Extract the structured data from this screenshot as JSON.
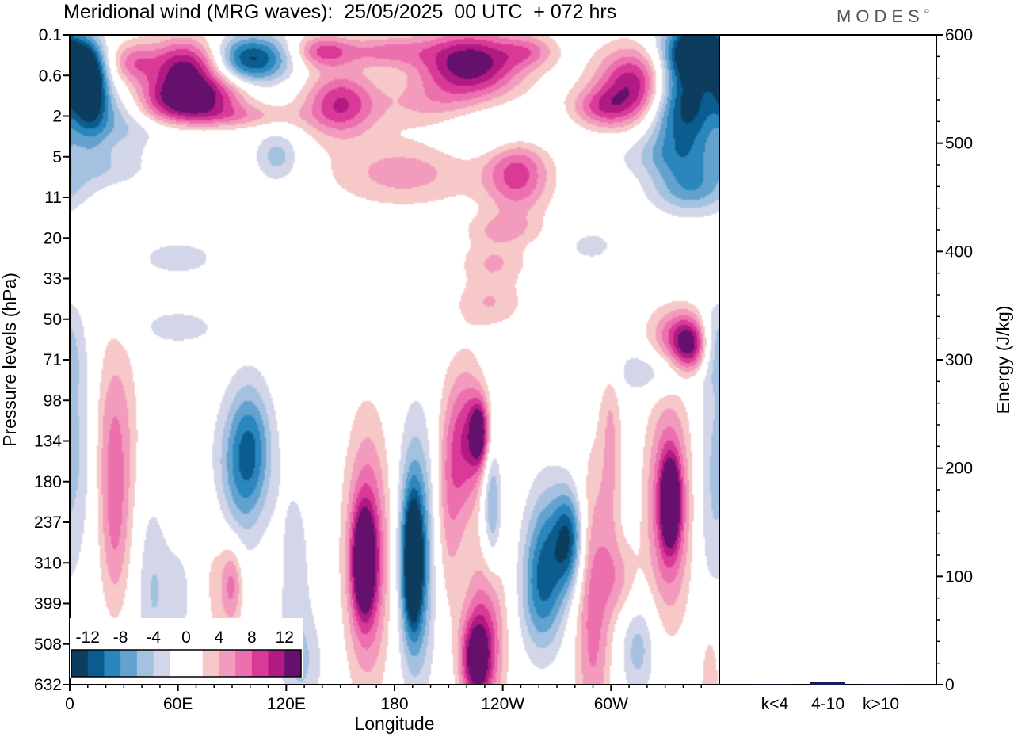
{
  "chart_data": [
    {
      "type": "heatmap",
      "title": "Meridional wind (MRG waves):  25/05/2025  00 UTC  + 072 hrs",
      "xlabel": "Longitude",
      "ylabel": "Pressure levels (hPa)",
      "x_ticks": [
        "0",
        "60E",
        "120E",
        "180",
        "120W",
        "60W"
      ],
      "x_tick_values": [
        0,
        60,
        120,
        180,
        240,
        300
      ],
      "xlim": [
        0,
        360
      ],
      "y_ticks": [
        "0.1",
        "0.6",
        "2",
        "5",
        "11",
        "20",
        "33",
        "50",
        "71",
        "98",
        "134",
        "180",
        "237",
        "310",
        "399",
        "508",
        "632"
      ],
      "colorbar": {
        "labels": [
          "-12",
          "-8",
          "-4",
          "0",
          "4",
          "8",
          "12"
        ],
        "colors": [
          "#0c3c5e",
          "#0b5d8f",
          "#2a86bd",
          "#63a2cf",
          "#a4c2e0",
          "#d2d6e8",
          "#ffffff",
          "#ffffff",
          "#f7c8c8",
          "#f29bbd",
          "#ec6fae",
          "#d93a98",
          "#b01a82",
          "#66106e"
        ]
      },
      "blobs": [
        {
          "lon": 8,
          "lev": 1.0,
          "w": 10,
          "h": 0.8,
          "v": -14
        },
        {
          "lon": 35,
          "lev": 0.7,
          "w": 12,
          "h": 0.5,
          "v": 6
        },
        {
          "lon": 65,
          "lev": 0.8,
          "w": 22,
          "h": 0.7,
          "v": 13
        },
        {
          "lon": 58,
          "lev": 1.6,
          "w": 25,
          "h": 0.5,
          "v": 11
        },
        {
          "lon": 100,
          "lev": 0.6,
          "w": 22,
          "h": 0.6,
          "v": -13
        },
        {
          "lon": 140,
          "lev": 0.4,
          "w": 16,
          "h": 0.4,
          "v": 8
        },
        {
          "lon": 85,
          "lev": 2.0,
          "w": 40,
          "h": 0.3,
          "v": 5
        },
        {
          "lon": 222,
          "lev": 0.7,
          "w": 28,
          "h": 0.8,
          "v": 14
        },
        {
          "lon": 175,
          "lev": 0.4,
          "w": 25,
          "h": 0.4,
          "v": 6
        },
        {
          "lon": 255,
          "lev": 0.4,
          "w": 15,
          "h": 0.4,
          "v": 5
        },
        {
          "lon": 315,
          "lev": 1.2,
          "w": 22,
          "h": 0.9,
          "v": 13
        },
        {
          "lon": 340,
          "lev": 1.5,
          "w": 20,
          "h": 1.6,
          "v": -15
        },
        {
          "lon": 350,
          "lev": 0.4,
          "w": 15,
          "h": 0.6,
          "v": -14
        },
        {
          "lon": 25,
          "lev": 2.0,
          "w": 25,
          "h": 0.8,
          "v": -6
        },
        {
          "lon": 12,
          "lev": 1.5,
          "w": 10,
          "h": 1.2,
          "v": -7
        },
        {
          "lon": 82,
          "lev": 1.5,
          "w": 20,
          "h": 0.5,
          "v": 5
        },
        {
          "lon": 150,
          "lev": 1.7,
          "w": 20,
          "h": 0.8,
          "v": 10
        },
        {
          "lon": 200,
          "lev": 1.7,
          "w": 30,
          "h": 0.6,
          "v": 4
        },
        {
          "lon": 240,
          "lev": 2.4,
          "w": 30,
          "h": 0.6,
          "v": -4
        },
        {
          "lon": 295,
          "lev": 1.8,
          "w": 18,
          "h": 0.5,
          "v": 7
        },
        {
          "lon": 248,
          "lev": 3.4,
          "w": 18,
          "h": 1.0,
          "v": 9
        },
        {
          "lon": 185,
          "lev": 3.4,
          "w": 40,
          "h": 0.8,
          "v": 5
        },
        {
          "lon": 115,
          "lev": 3.0,
          "w": 12,
          "h": 0.6,
          "v": -5
        },
        {
          "lon": 20,
          "lev": 3.3,
          "w": 25,
          "h": 0.5,
          "v": -3
        },
        {
          "lon": 345,
          "lev": 3.8,
          "w": 22,
          "h": 0.6,
          "v": -6
        },
        {
          "lon": 330,
          "lev": 3.0,
          "w": 30,
          "h": 0.5,
          "v": -3
        },
        {
          "lon": 60,
          "lev": 5.5,
          "w": 25,
          "h": 0.5,
          "v": -3
        },
        {
          "lon": 235,
          "lev": 5.6,
          "w": 18,
          "h": 0.5,
          "v": 4
        },
        {
          "lon": 233,
          "lev": 6.6,
          "w": 18,
          "h": 0.6,
          "v": 4
        },
        {
          "lon": 290,
          "lev": 5.2,
          "w": 15,
          "h": 0.4,
          "v": -3
        },
        {
          "lon": 60,
          "lev": 7.2,
          "w": 25,
          "h": 0.5,
          "v": -3
        },
        {
          "lon": 335,
          "lev": 7.4,
          "w": 15,
          "h": 0.7,
          "v": 6
        },
        {
          "lon": 344,
          "lev": 7.7,
          "w": 10,
          "h": 0.7,
          "v": 11
        },
        {
          "lon": 325,
          "lev": 8.3,
          "w": 30,
          "h": 0.6,
          "v": -4
        },
        {
          "lon": 357,
          "lev": 7.5,
          "w": 8,
          "h": 0.8,
          "v": -4
        },
        {
          "lon": 25,
          "lev": 10.0,
          "w": 12,
          "h": 2.6,
          "v": 6
        },
        {
          "lon": 25,
          "lev": 12.5,
          "w": 8,
          "h": 2.0,
          "v": 4
        },
        {
          "lon": 5,
          "lev": 10.0,
          "w": 10,
          "h": 3.0,
          "v": -4
        },
        {
          "lon": 100,
          "lev": 10.2,
          "w": 12,
          "h": 1.6,
          "v": -9
        },
        {
          "lon": 88,
          "lev": 11.2,
          "w": 16,
          "h": 2.0,
          "v": -5
        },
        {
          "lon": 80,
          "lev": 12.8,
          "w": 12,
          "h": 2.5,
          "v": 4
        },
        {
          "lon": 90,
          "lev": 13.5,
          "w": 6,
          "h": 1.0,
          "v": 6
        },
        {
          "lon": 60,
          "lev": 13.8,
          "w": 15,
          "h": 1.5,
          "v": -3
        },
        {
          "lon": 125,
          "lev": 13.5,
          "w": 10,
          "h": 3.0,
          "v": -3
        },
        {
          "lon": 165,
          "lev": 12.8,
          "w": 12,
          "h": 3.0,
          "v": 10
        },
        {
          "lon": 163,
          "lev": 13.0,
          "w": 6,
          "h": 1.2,
          "v": 13
        },
        {
          "lon": 192,
          "lev": 12.8,
          "w": 10,
          "h": 3.0,
          "v": -10
        },
        {
          "lon": 190,
          "lev": 13.0,
          "w": 5,
          "h": 1.5,
          "v": -13
        },
        {
          "lon": 220,
          "lev": 10.0,
          "w": 10,
          "h": 1.8,
          "v": 9
        },
        {
          "lon": 227,
          "lev": 9.8,
          "w": 5,
          "h": 0.8,
          "v": 12
        },
        {
          "lon": 210,
          "lev": 11.5,
          "w": 8,
          "h": 2.5,
          "v": 5
        },
        {
          "lon": 234,
          "lev": 11.6,
          "w": 5,
          "h": 1.4,
          "v": -7
        },
        {
          "lon": 230,
          "lev": 14.8,
          "w": 12,
          "h": 2.0,
          "v": 8
        },
        {
          "lon": 225,
          "lev": 15.4,
          "w": 8,
          "h": 1.0,
          "v": 11
        },
        {
          "lon": 265,
          "lev": 12.8,
          "w": 12,
          "h": 1.8,
          "v": -8
        },
        {
          "lon": 277,
          "lev": 12.4,
          "w": 8,
          "h": 1.2,
          "v": -10
        },
        {
          "lon": 260,
          "lev": 13.9,
          "w": 12,
          "h": 1.5,
          "v": -5
        },
        {
          "lon": 290,
          "lev": 14.2,
          "w": 10,
          "h": 3.5,
          "v": 7
        },
        {
          "lon": 305,
          "lev": 13.4,
          "w": 10,
          "h": 1.0,
          "v": 4
        },
        {
          "lon": 315,
          "lev": 15.1,
          "w": 10,
          "h": 1.2,
          "v": -5
        },
        {
          "lon": 300,
          "lev": 9.9,
          "w": 6,
          "h": 3.0,
          "v": 4
        },
        {
          "lon": 332,
          "lev": 11.6,
          "w": 12,
          "h": 2.6,
          "v": 10
        },
        {
          "lon": 333,
          "lev": 11.5,
          "w": 5,
          "h": 1.0,
          "v": 13
        },
        {
          "lon": 355,
          "lev": 11.5,
          "w": 8,
          "h": 3.5,
          "v": -3
        },
        {
          "lon": 355,
          "lev": 16.0,
          "w": 6,
          "h": 2.0,
          "v": 4
        },
        {
          "lon": 130,
          "lev": 15.5,
          "w": 12,
          "h": 1.2,
          "v": -3
        },
        {
          "lon": 45,
          "lev": 13.5,
          "w": 8,
          "h": 2.5,
          "v": -3
        },
        {
          "lon": 240,
          "lev": 4.8,
          "w": 20,
          "h": 0.4,
          "v": 4
        }
      ]
    },
    {
      "type": "bar",
      "ylabel": "Energy (J/kg)",
      "categories": [
        "k<4",
        "4-10",
        "k>10"
      ],
      "values": [
        0.3,
        2.5,
        0.3
      ],
      "ylim": [
        0,
        600
      ],
      "y_ticks": [
        "0",
        "100",
        "200",
        "300",
        "400",
        "500",
        "600"
      ],
      "bar_color": "#1a1a5e"
    }
  ],
  "logo": {
    "text": "MODES",
    "mark": "©"
  }
}
